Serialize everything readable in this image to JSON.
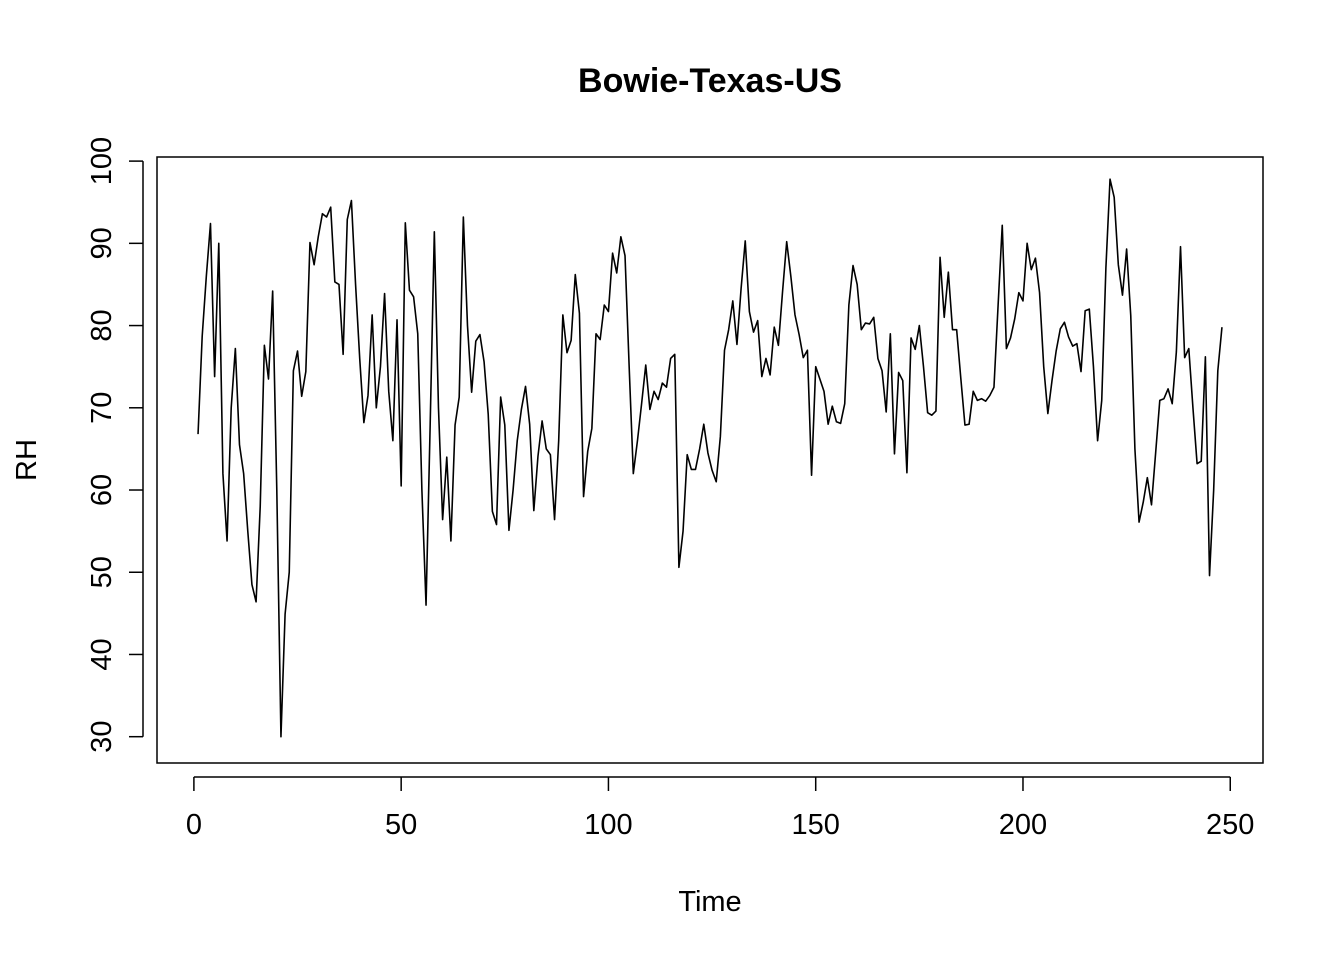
{
  "chart_data": {
    "type": "line",
    "title": "Bowie-Texas-US",
    "xlabel": "Time",
    "ylabel": "RH",
    "xlim": [
      -8.9,
      257.9
    ],
    "ylim": [
      26.8,
      100.5
    ],
    "x_ticks": [
      0,
      50,
      100,
      150,
      200,
      250
    ],
    "y_ticks": [
      30,
      40,
      50,
      60,
      70,
      80,
      90,
      100
    ],
    "grid": false,
    "legend": "none",
    "series": [
      {
        "values": [
          66.8,
          78.7,
          86,
          92.4,
          73.8,
          90,
          62,
          53.8,
          70,
          77.2,
          65.5,
          62,
          55,
          48.5,
          46.4,
          58,
          77.6,
          73.5,
          84.2,
          60,
          30,
          44.9,
          50,
          74.5,
          76.9,
          71.4,
          74.4,
          90.1,
          87.4,
          90.8,
          93.6,
          93.2,
          94.4,
          85.3,
          85,
          76.5,
          92.9,
          95.2,
          85,
          76,
          68.2,
          71.5,
          81.3,
          70,
          75,
          83.9,
          72,
          66,
          80.7,
          60.5,
          92.5,
          84.3,
          83.5,
          79,
          60,
          46,
          68,
          91.4,
          70,
          56.4,
          64,
          53.8,
          67.9,
          71.3,
          93.2,
          80,
          71.9,
          78.1,
          78.9,
          75.6,
          69.2,
          57.4,
          55.8,
          71.3,
          67.9,
          55.1,
          60,
          66,
          69.8,
          72.6,
          68,
          57.5,
          64.1,
          68.4,
          65,
          64.3,
          56.4,
          66,
          81.3,
          76.7,
          78.2,
          86.2,
          81.5,
          59.2,
          64.7,
          67.5,
          79,
          78.3,
          82.5,
          81.7,
          88.8,
          86.4,
          90.8,
          88.5,
          75,
          62,
          66,
          70.5,
          75.2,
          69.8,
          72,
          71,
          73,
          72.5,
          76,
          76.5,
          50.6,
          55,
          64.3,
          62.5,
          62.5,
          65,
          68,
          64.5,
          62.4,
          61,
          66.5,
          77,
          79.5,
          83,
          77.7,
          84.5,
          90.3,
          81.7,
          79.2,
          80.6,
          73.8,
          76,
          74,
          79.8,
          77.6,
          84.1,
          90.2,
          86,
          81.3,
          78.9,
          76.1,
          77,
          61.8,
          75,
          73.5,
          72,
          68,
          70.2,
          68.3,
          68.1,
          70.5,
          82.5,
          87.3,
          85,
          79.5,
          80.3,
          80.2,
          81,
          76,
          74.5,
          69.5,
          79,
          64.4,
          74.3,
          73.3,
          62.1,
          78.5,
          77.1,
          80,
          75,
          69.4,
          69.1,
          69.6,
          88.3,
          81,
          86.5,
          79.5,
          79.5,
          73.6,
          67.9,
          68,
          72,
          70.9,
          71.1,
          70.8,
          71.5,
          72.5,
          82.5,
          92.2,
          77.2,
          78.5,
          80.8,
          84,
          83,
          90,
          86.8,
          88.2,
          84,
          75,
          69.3,
          73.3,
          76.9,
          79.6,
          80.4,
          78.6,
          77.5,
          77.8,
          74.4,
          81.8,
          82,
          75,
          66,
          70.9,
          87,
          97.8,
          95.6,
          87.4,
          83.7,
          89.3,
          81.2,
          65,
          56.1,
          58.5,
          61.5,
          58.2,
          64.5,
          70.9,
          71.1,
          72.3,
          70.5,
          76.8,
          89.6,
          76.1,
          77.2,
          70,
          63.2,
          63.5,
          76.2,
          49.6,
          60,
          74.5,
          79.8
        ]
      }
    ]
  }
}
